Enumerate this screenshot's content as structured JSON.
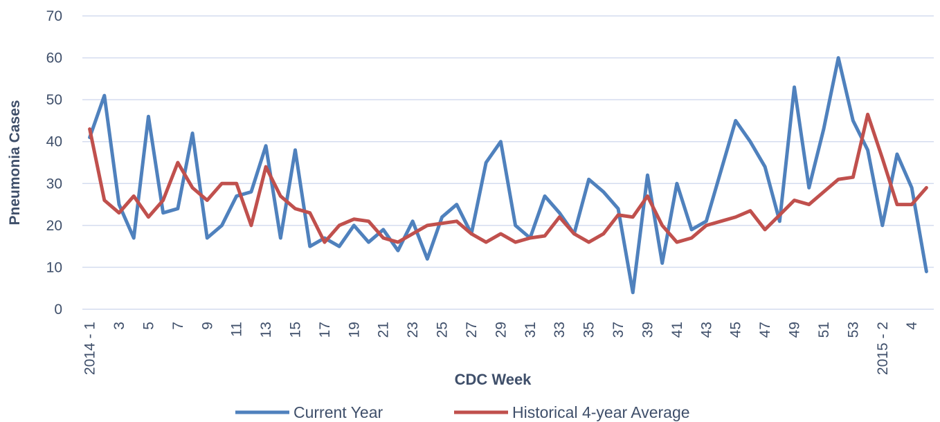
{
  "chart_data": {
    "type": "line",
    "y_label": "Pneumonia Cases",
    "x_label": "CDC Week",
    "categories": [
      "2014 - 1",
      null,
      "3",
      null,
      "5",
      null,
      "7",
      null,
      "9",
      null,
      "11",
      null,
      "13",
      null,
      "15",
      null,
      "17",
      null,
      "19",
      null,
      "21",
      null,
      "23",
      null,
      "25",
      null,
      "27",
      null,
      "29",
      null,
      "31",
      null,
      "33",
      null,
      "35",
      null,
      "37",
      null,
      "39",
      null,
      "41",
      null,
      "43",
      null,
      "45",
      null,
      "47",
      null,
      "49",
      null,
      "51",
      null,
      "53",
      null,
      "2015 - 2",
      null,
      "4",
      null
    ],
    "series": [
      {
        "name": "Current Year",
        "color": "#4f81bd",
        "values": [
          41,
          51,
          25,
          17,
          46,
          23,
          24,
          42,
          17,
          20,
          27,
          28,
          39,
          17,
          38,
          15,
          17,
          15,
          20,
          16,
          19,
          14,
          21,
          12,
          22,
          25,
          18,
          35,
          40,
          20,
          17,
          27,
          23,
          18,
          31,
          28,
          24,
          4,
          32,
          11,
          30,
          19,
          21,
          33,
          45,
          40,
          34,
          21,
          53,
          29,
          43,
          60,
          45,
          38,
          20,
          37,
          29,
          9
        ]
      },
      {
        "name": "Historical 4-year Average",
        "color": "#c0504d",
        "values": [
          43,
          26,
          23,
          27,
          22,
          26,
          35,
          29,
          26,
          30,
          30,
          20,
          34,
          27,
          24,
          23,
          16,
          20,
          21.5,
          21,
          17,
          16,
          18,
          20,
          20.5,
          21,
          18,
          16,
          18,
          16,
          17,
          17.5,
          22,
          18,
          16,
          18,
          22.5,
          22,
          27,
          20,
          16,
          17,
          20,
          21,
          22,
          23.5,
          19,
          22.5,
          26,
          25,
          28,
          31,
          31.5,
          46.5,
          36,
          25,
          25,
          29
        ]
      }
    ],
    "ylim": [
      0,
      70
    ],
    "yticks": [
      0,
      10,
      20,
      30,
      40,
      50,
      60,
      70
    ],
    "grid": true
  }
}
